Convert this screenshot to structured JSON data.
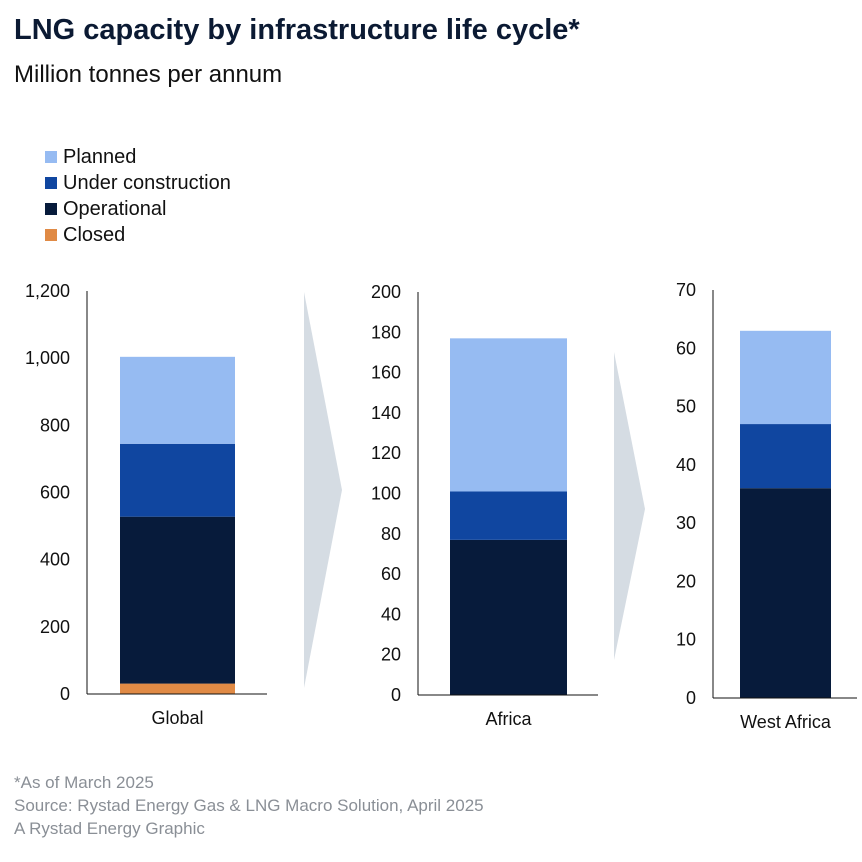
{
  "title": "LNG capacity by infrastructure life cycle*",
  "subtitle": "Million tonnes per annum",
  "legend": [
    {
      "label": "Planned",
      "color": "#96bbf2"
    },
    {
      "label": "Under construction",
      "color": "#1046a0"
    },
    {
      "label": "Operational",
      "color": "#071b3b"
    },
    {
      "label": "Closed",
      "color": "#e08a45"
    }
  ],
  "chart_data": [
    {
      "type": "bar",
      "stacked": true,
      "categories": [
        "Global"
      ],
      "ylim": [
        0,
        1200
      ],
      "yticks": [
        0,
        200,
        400,
        600,
        800,
        1000,
        1200
      ],
      "ytick_labels": [
        "0",
        "200",
        "400",
        "600",
        "800",
        "1,000",
        "1,200"
      ],
      "series": [
        {
          "name": "Closed",
          "values": [
            31
          ]
        },
        {
          "name": "Operational",
          "values": [
            497
          ]
        },
        {
          "name": "Under construction",
          "values": [
            217
          ]
        },
        {
          "name": "Planned",
          "values": [
            259
          ]
        }
      ]
    },
    {
      "type": "bar",
      "stacked": true,
      "categories": [
        "Africa"
      ],
      "ylim": [
        0,
        200
      ],
      "yticks": [
        0,
        20,
        40,
        60,
        80,
        100,
        120,
        140,
        160,
        180,
        200
      ],
      "ytick_labels": [
        "0",
        "20",
        "40",
        "60",
        "80",
        "100",
        "120",
        "140",
        "160",
        "180",
        "200"
      ],
      "series": [
        {
          "name": "Closed",
          "values": [
            0
          ]
        },
        {
          "name": "Operational",
          "values": [
            77
          ]
        },
        {
          "name": "Under construction",
          "values": [
            24
          ]
        },
        {
          "name": "Planned",
          "values": [
            76
          ]
        }
      ]
    },
    {
      "type": "bar",
      "stacked": true,
      "categories": [
        "West Africa"
      ],
      "ylim": [
        0,
        70
      ],
      "yticks": [
        0,
        10,
        20,
        30,
        40,
        50,
        60,
        70
      ],
      "ytick_labels": [
        "0",
        "10",
        "20",
        "30",
        "40",
        "50",
        "60",
        "70"
      ],
      "series": [
        {
          "name": "Closed",
          "values": [
            0
          ]
        },
        {
          "name": "Operational",
          "values": [
            36
          ]
        },
        {
          "name": "Under construction",
          "values": [
            11
          ]
        },
        {
          "name": "Planned",
          "values": [
            16
          ]
        }
      ]
    }
  ],
  "footer": [
    "*As of March 2025",
    "Source: Rystad Energy Gas & LNG Macro Solution, April 2025",
    "A Rystad Energy Graphic"
  ]
}
